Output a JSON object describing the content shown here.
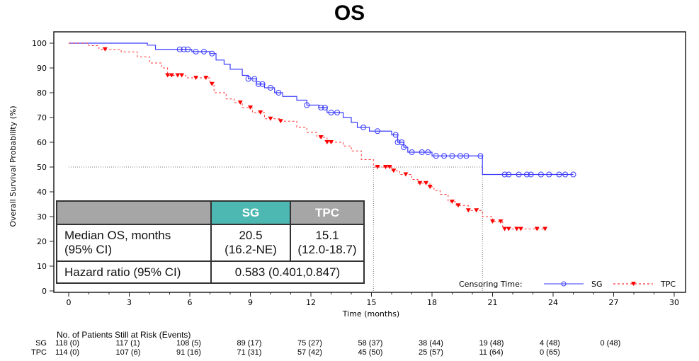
{
  "chart_data": {
    "type": "line",
    "title": "OS",
    "xlabel": "Time (months)",
    "ylabel": "Overall Survival Probability (%)",
    "xlim": [
      0,
      30
    ],
    "ylim": [
      0,
      100
    ],
    "xticks": [
      "0",
      "3",
      "6",
      "9",
      "12",
      "15",
      "18",
      "21",
      "24",
      "27",
      "30"
    ],
    "yticks": [
      "0",
      "10",
      "20",
      "30",
      "40",
      "50",
      "60",
      "70",
      "80",
      "90",
      "100"
    ],
    "step": true,
    "grid": false,
    "legend": {
      "placement": "bottom-right",
      "prefix": "Censoring Time:"
    },
    "reference_lines": {
      "y": 50,
      "x": [
        15.1,
        20.5
      ]
    },
    "series": [
      {
        "name": "SG",
        "color": "#3b3bff",
        "style": "solid",
        "censor_marker": "circle",
        "points": [
          [
            0,
            100
          ],
          [
            3.9,
            99.2
          ],
          [
            4.3,
            97.5
          ],
          [
            6.1,
            96.6
          ],
          [
            7.0,
            95.8
          ],
          [
            7.3,
            93.2
          ],
          [
            7.7,
            91.5
          ],
          [
            8.0,
            89.5
          ],
          [
            8.6,
            87
          ],
          [
            8.9,
            85.6
          ],
          [
            9.3,
            83.5
          ],
          [
            9.7,
            82
          ],
          [
            10.2,
            80
          ],
          [
            10.6,
            78.5
          ],
          [
            11.3,
            77
          ],
          [
            11.8,
            75
          ],
          [
            12.4,
            74
          ],
          [
            12.8,
            72
          ],
          [
            13.6,
            70
          ],
          [
            14.0,
            68
          ],
          [
            14.3,
            66
          ],
          [
            14.9,
            64.5
          ],
          [
            16.0,
            63
          ],
          [
            16.3,
            60
          ],
          [
            16.6,
            58
          ],
          [
            16.8,
            56
          ],
          [
            18.0,
            54.5
          ],
          [
            20.5,
            47
          ],
          [
            25.0,
            47
          ]
        ],
        "censored": [
          5.5,
          5.7,
          5.9,
          6.3,
          6.7,
          7.1,
          8.9,
          9.2,
          9.4,
          9.6,
          10.0,
          10.4,
          11.8,
          12.5,
          12.7,
          13.0,
          13.3,
          14.6,
          15.3,
          16.2,
          16.3,
          16.5,
          16.6,
          17.0,
          17.5,
          17.8,
          18.2,
          18.6,
          19.0,
          19.4,
          19.7,
          20.4,
          21.6,
          21.8,
          22.3,
          22.7,
          22.9,
          23.4,
          23.8,
          24.3,
          24.6,
          25.0
        ]
      },
      {
        "name": "TPC",
        "color": "#ff0000",
        "style": "dashed",
        "censor_marker": "triangle-down",
        "points": [
          [
            0,
            100
          ],
          [
            1.0,
            99
          ],
          [
            1.5,
            97.5
          ],
          [
            2.6,
            96.5
          ],
          [
            3.4,
            94.5
          ],
          [
            4.0,
            92
          ],
          [
            4.6,
            90
          ],
          [
            4.9,
            87
          ],
          [
            5.8,
            86
          ],
          [
            7.0,
            83.5
          ],
          [
            7.2,
            80
          ],
          [
            7.8,
            77.5
          ],
          [
            8.2,
            76
          ],
          [
            8.6,
            74
          ],
          [
            9.1,
            72
          ],
          [
            9.7,
            69.5
          ],
          [
            10.5,
            68.5
          ],
          [
            11.3,
            66
          ],
          [
            11.8,
            64
          ],
          [
            12.3,
            62
          ],
          [
            12.8,
            60
          ],
          [
            13.6,
            58.5
          ],
          [
            14.0,
            56.5
          ],
          [
            14.5,
            53
          ],
          [
            15.1,
            50
          ],
          [
            16.0,
            48.5
          ],
          [
            16.4,
            47
          ],
          [
            17.0,
            45
          ],
          [
            17.3,
            43.5
          ],
          [
            17.9,
            42
          ],
          [
            18.1,
            40.5
          ],
          [
            18.4,
            39
          ],
          [
            18.8,
            36
          ],
          [
            19.2,
            34.5
          ],
          [
            19.8,
            32.5
          ],
          [
            20.5,
            30
          ],
          [
            21.0,
            28
          ],
          [
            21.5,
            25
          ],
          [
            23.6,
            25
          ]
        ],
        "censored": [
          1.8,
          4.9,
          5.1,
          5.4,
          5.6,
          6.3,
          6.8,
          7.1,
          8.5,
          9.0,
          9.5,
          10.0,
          10.5,
          12.5,
          12.8,
          13.0,
          15.3,
          15.7,
          15.9,
          16.1,
          16.7,
          17.4,
          17.7,
          17.9,
          19.0,
          19.3,
          19.8,
          20.2,
          21.0,
          21.4,
          21.6,
          21.8,
          22.2,
          22.4,
          23.2,
          23.6
        ]
      }
    ]
  },
  "summary_table": {
    "headers": [
      "",
      "SG",
      "TPC"
    ],
    "header_colors": {
      "blank": "#a6a6a6",
      "SG": "#4db8b2",
      "TPC": "#a6a6a6"
    },
    "median_label_1": "Median OS, months",
    "median_label_2": "(95% CI)",
    "sg_median": "20.5",
    "sg_ci": "(16.2-NE)",
    "tpc_median": "15.1",
    "tpc_ci": "(12.0-18.7)",
    "hr_label": "Hazard ratio (95% CI)",
    "hr_value": "0.583 (0.401,0.847)"
  },
  "at_risk": {
    "title": "No. of Patients Still at Risk (Events)",
    "rows": [
      {
        "label": "SG",
        "values": [
          "118 (0)",
          "117 (1)",
          "108 (5)",
          "89 (17)",
          "75 (27)",
          "58 (37)",
          "38 (44)",
          "19 (48)",
          "4 (48)",
          "0 (48)"
        ]
      },
      {
        "label": "TPC",
        "values": [
          "114 (0)",
          "107 (6)",
          "91 (16)",
          "71 (31)",
          "57 (42)",
          "45 (50)",
          "25 (57)",
          "11 (64)",
          "0 (65)"
        ]
      }
    ]
  }
}
